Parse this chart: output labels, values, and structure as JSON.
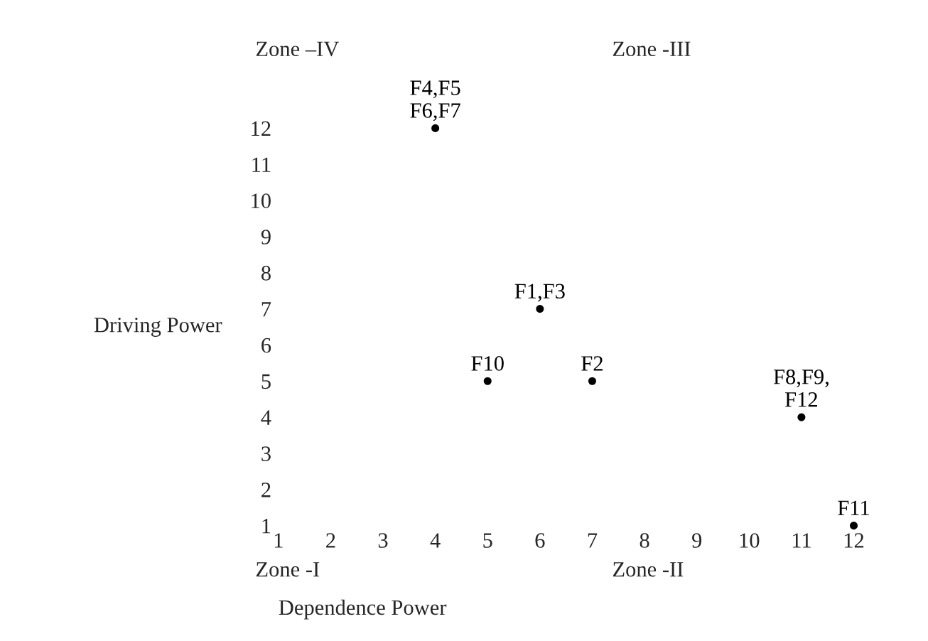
{
  "chart_data": {
    "type": "scatter",
    "xlabel": "Dependence Power",
    "ylabel": "Driving Power",
    "series": [
      {
        "color": "#000000",
        "x": [
          4,
          5,
          6,
          7,
          11,
          12
        ],
        "values": [
          12,
          5,
          7,
          5,
          4,
          1
        ],
        "value_labels": [
          "F4,F5\nF6,F7",
          "F10",
          "F1,F3",
          "F2",
          "F8,F9,\nF12",
          "F11"
        ]
      }
    ],
    "marker": "circle",
    "xlim": [
      1,
      12
    ],
    "xticks": [
      1,
      2,
      3,
      4,
      5,
      6,
      7,
      8,
      9,
      10,
      11,
      12
    ],
    "ylim": [
      1,
      12
    ],
    "yticks": [
      1,
      2,
      3,
      4,
      5,
      6,
      7,
      8,
      9,
      10,
      11,
      12
    ],
    "grid": false,
    "annotations": [
      "Zone –IV",
      "Zone -III",
      "Zone -I",
      "Zone -II"
    ]
  }
}
